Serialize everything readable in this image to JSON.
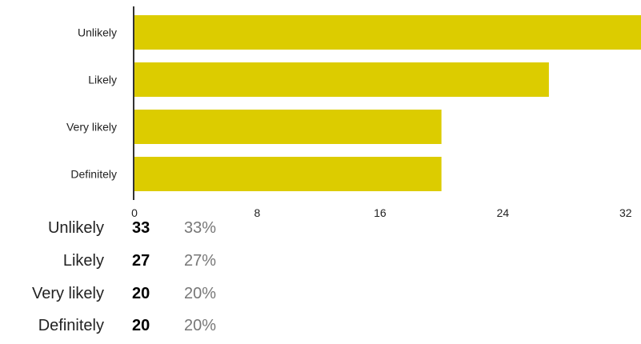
{
  "chart_data": {
    "type": "bar",
    "orientation": "horizontal",
    "categories": [
      "Unlikely",
      "Likely",
      "Very likely",
      "Definitely"
    ],
    "values": [
      33,
      27,
      20,
      20
    ],
    "xlim": [
      0,
      33
    ],
    "xticks": [
      0,
      8,
      16,
      24,
      32
    ],
    "bar_color": "#dccc00",
    "grid": false
  },
  "summary": {
    "rows": [
      {
        "label": "Unlikely",
        "count": "33",
        "percent": "33%"
      },
      {
        "label": "Likely",
        "count": "27",
        "percent": "27%"
      },
      {
        "label": "Very likely",
        "count": "20",
        "percent": "20%"
      },
      {
        "label": "Definitely",
        "count": "20",
        "percent": "20%"
      }
    ]
  }
}
